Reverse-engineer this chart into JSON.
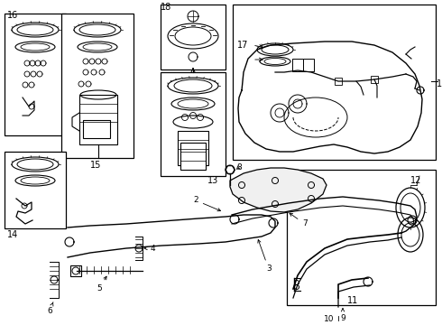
{
  "figsize": [
    4.9,
    3.6
  ],
  "dpi": 100,
  "bg": "#ffffff"
}
